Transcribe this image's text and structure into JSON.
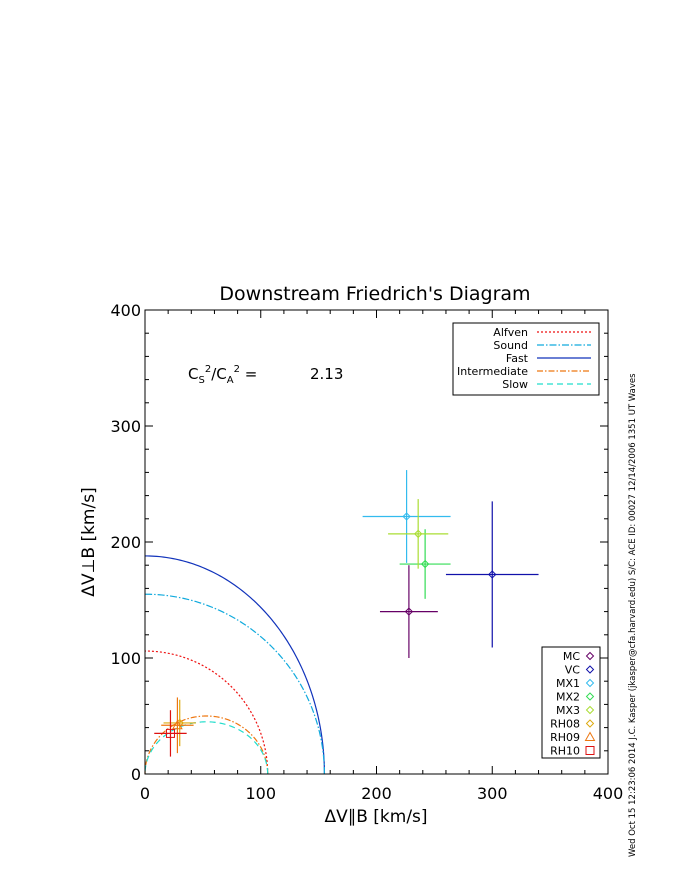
{
  "chart_data": {
    "type": "scatter",
    "title": "Downstream Friedrich's Diagram",
    "xlabel": "ΔV∥B [km/s]",
    "ylabel": "ΔV⊥B [km/s]",
    "xlim": [
      0,
      400
    ],
    "ylim": [
      0,
      400
    ],
    "x_ticks": [
      "0",
      "100",
      "200",
      "300",
      "400"
    ],
    "y_ticks": [
      "0",
      "100",
      "200",
      "300",
      "400"
    ],
    "annotation": {
      "label": "C_S^2/C_A^2 =",
      "value": "2.13"
    },
    "side_text": "Wed Oct 15 12:23:06 2014   J.C. Kasper (jkasper@cfa.harvard.edu)   S/C: ACE ID: 00027 12/14/2006   1351 UT Waves",
    "curve_legend": [
      {
        "name": "Alfven",
        "color": "#ee1111",
        "dash": "2,2"
      },
      {
        "name": "Sound",
        "color": "#11aadd",
        "dash": "7,2,1.5,2"
      },
      {
        "name": "Fast",
        "color": "#1133bb",
        "dash": ""
      },
      {
        "name": "Intermediate",
        "color": "#ee7711",
        "dash": "6,2,1.5,2"
      },
      {
        "name": "Slow",
        "color": "#22ddcc",
        "dash": "6,4"
      }
    ],
    "curves": {
      "fast_radius": 155,
      "fast_perp": 188,
      "sound_radius": 155,
      "sound_perp": 155,
      "alfven_radius": 106,
      "alfven_perp": 106,
      "intermediate_radius": 106,
      "intermediate_peak": 50,
      "slow_radius": 106,
      "slow_peak": 45
    },
    "points": [
      {
        "name": "MC",
        "x": 228,
        "y": 140,
        "xerr": 25,
        "yerr": 40,
        "color": "#660066",
        "marker": "diamond"
      },
      {
        "name": "VC",
        "x": 300,
        "y": 172,
        "xerr": 40,
        "yerr": 63,
        "color": "#1111aa",
        "marker": "diamond"
      },
      {
        "name": "MX1",
        "x": 226,
        "y": 222,
        "xerr": 38,
        "yerr": 40,
        "color": "#33bbee",
        "marker": "diamond"
      },
      {
        "name": "MX2",
        "x": 242,
        "y": 181,
        "xerr": 22,
        "yerr": 30,
        "color": "#33dd55",
        "marker": "diamond"
      },
      {
        "name": "MX3",
        "x": 236,
        "y": 207,
        "xerr": 26,
        "yerr": 30,
        "color": "#aadd33",
        "marker": "diamond"
      },
      {
        "name": "RH08",
        "x": 30,
        "y": 44,
        "xerr": 14,
        "yerr": 20,
        "color": "#ddaa11",
        "marker": "diamond"
      },
      {
        "name": "RH09",
        "x": 28,
        "y": 42,
        "xerr": 14,
        "yerr": 24,
        "color": "#ee7711",
        "marker": "triangle"
      },
      {
        "name": "RH10",
        "x": 22,
        "y": 35,
        "xerr": 14,
        "yerr": 20,
        "color": "#dd1111",
        "marker": "square"
      }
    ]
  }
}
